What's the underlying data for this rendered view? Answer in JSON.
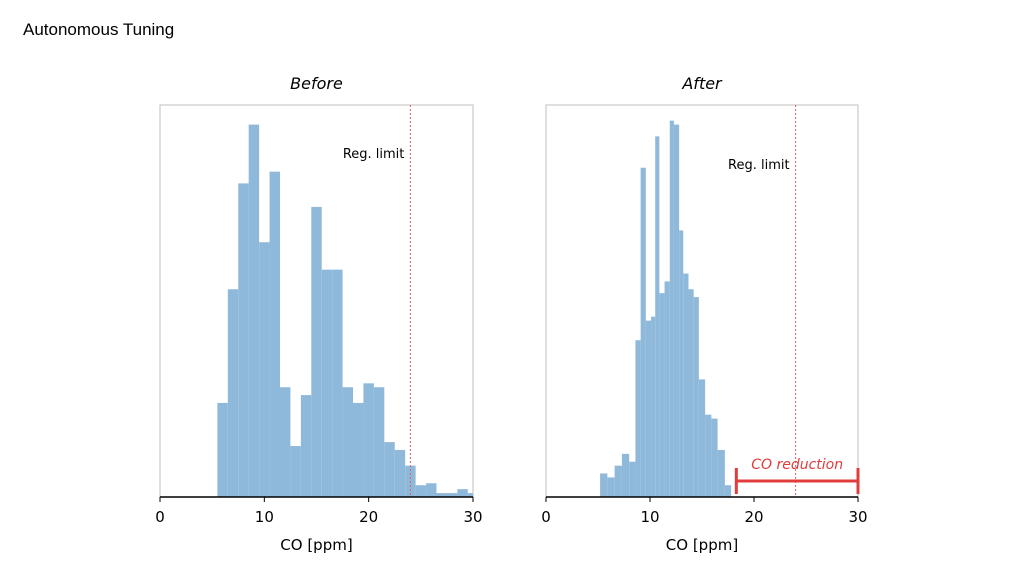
{
  "slide": {
    "title": "Autonomous Tuning"
  },
  "chart_data": [
    {
      "type": "histogram",
      "title": "Before",
      "xlabel": "CO [ppm]",
      "ylabel": "",
      "xlim": [
        0,
        30
      ],
      "x_ticks": [
        "0",
        "10",
        "20",
        "30"
      ],
      "ylim": [
        0,
        100
      ],
      "bar_color": "#8fb9da",
      "bins": [
        {
          "x0": 5.5,
          "x1": 6.5,
          "y": 24
        },
        {
          "x0": 6.5,
          "x1": 7.5,
          "y": 53
        },
        {
          "x0": 7.5,
          "x1": 8.5,
          "y": 80
        },
        {
          "x0": 8.5,
          "x1": 9.5,
          "y": 95
        },
        {
          "x0": 9.5,
          "x1": 10.5,
          "y": 65
        },
        {
          "x0": 10.5,
          "x1": 11.5,
          "y": 83
        },
        {
          "x0": 11.5,
          "x1": 12.5,
          "y": 28
        },
        {
          "x0": 12.5,
          "x1": 13.5,
          "y": 13
        },
        {
          "x0": 13.5,
          "x1": 14.5,
          "y": 26
        },
        {
          "x0": 14.5,
          "x1": 15.5,
          "y": 74
        },
        {
          "x0": 15.5,
          "x1": 16.5,
          "y": 58
        },
        {
          "x0": 16.5,
          "x1": 17.5,
          "y": 58
        },
        {
          "x0": 17.5,
          "x1": 18.5,
          "y": 28
        },
        {
          "x0": 18.5,
          "x1": 19.5,
          "y": 24
        },
        {
          "x0": 19.5,
          "x1": 20.5,
          "y": 29
        },
        {
          "x0": 20.5,
          "x1": 21.5,
          "y": 28
        },
        {
          "x0": 21.5,
          "x1": 22.5,
          "y": 14
        },
        {
          "x0": 22.5,
          "x1": 23.5,
          "y": 12
        },
        {
          "x0": 23.5,
          "x1": 24.5,
          "y": 8
        },
        {
          "x0": 24.5,
          "x1": 25.5,
          "y": 3
        },
        {
          "x0": 25.5,
          "x1": 26.5,
          "y": 3.5
        },
        {
          "x0": 26.5,
          "x1": 27.5,
          "y": 1
        },
        {
          "x0": 27.5,
          "x1": 28.5,
          "y": 1
        },
        {
          "x0": 28.5,
          "x1": 29.5,
          "y": 2
        },
        {
          "x0": 29.5,
          "x1": 30,
          "y": 1
        }
      ],
      "reference_line": {
        "x": 24,
        "label": "Reg. limit",
        "color": "#e06060"
      }
    },
    {
      "type": "histogram",
      "title": "After",
      "xlabel": "CO [ppm]",
      "ylabel": "",
      "xlim": [
        0,
        30
      ],
      "x_ticks": [
        "0",
        "10",
        "20",
        "30"
      ],
      "ylim": [
        0,
        100
      ],
      "bar_color": "#8fb9da",
      "bins": [
        {
          "x0": 5.2,
          "x1": 5.9,
          "y": 6
        },
        {
          "x0": 5.9,
          "x1": 6.6,
          "y": 5
        },
        {
          "x0": 6.6,
          "x1": 7.3,
          "y": 8
        },
        {
          "x0": 7.3,
          "x1": 8.0,
          "y": 11
        },
        {
          "x0": 8.0,
          "x1": 8.6,
          "y": 9
        },
        {
          "x0": 8.6,
          "x1": 9.1,
          "y": 40
        },
        {
          "x0": 9.1,
          "x1": 9.6,
          "y": 84
        },
        {
          "x0": 9.6,
          "x1": 10.1,
          "y": 45
        },
        {
          "x0": 10.1,
          "x1": 10.5,
          "y": 46
        },
        {
          "x0": 10.5,
          "x1": 10.9,
          "y": 92
        },
        {
          "x0": 10.9,
          "x1": 11.4,
          "y": 52
        },
        {
          "x0": 11.4,
          "x1": 11.9,
          "y": 55
        },
        {
          "x0": 11.9,
          "x1": 12.3,
          "y": 96
        },
        {
          "x0": 12.3,
          "x1": 12.8,
          "y": 95
        },
        {
          "x0": 12.8,
          "x1": 13.2,
          "y": 68
        },
        {
          "x0": 13.2,
          "x1": 13.7,
          "y": 57
        },
        {
          "x0": 13.7,
          "x1": 14.2,
          "y": 53
        },
        {
          "x0": 14.2,
          "x1": 14.7,
          "y": 51
        },
        {
          "x0": 14.7,
          "x1": 15.3,
          "y": 30
        },
        {
          "x0": 15.3,
          "x1": 15.9,
          "y": 21
        },
        {
          "x0": 15.9,
          "x1": 16.5,
          "y": 20
        },
        {
          "x0": 16.5,
          "x1": 17.2,
          "y": 12
        },
        {
          "x0": 17.2,
          "x1": 17.8,
          "y": 3
        }
      ],
      "reference_line": {
        "x": 24,
        "label": "Reg. limit",
        "color": "#e06060"
      },
      "annotation": {
        "label": "CO reduction",
        "x_start": 18.3,
        "x_end": 30,
        "color": "#e03c3c"
      }
    }
  ]
}
